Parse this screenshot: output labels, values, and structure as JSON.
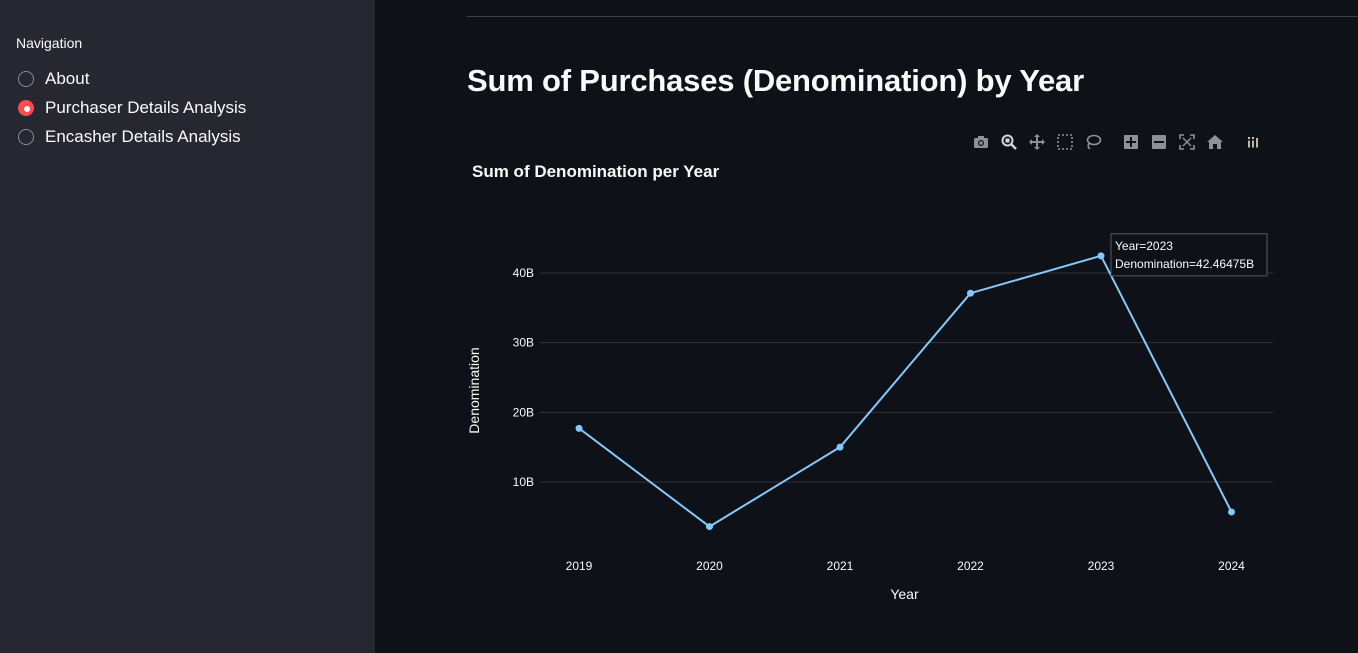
{
  "sidebar": {
    "nav_title": "Navigation",
    "options": [
      {
        "label": "About",
        "checked": false
      },
      {
        "label": "Purchaser Details Analysis",
        "checked": true
      },
      {
        "label": "Encasher Details Analysis",
        "checked": false
      }
    ],
    "accent_color": "#ff4b4b"
  },
  "main": {
    "title": "Sum of Purchases (Denomination) by Year"
  },
  "modebar": {
    "icons": [
      "camera-icon",
      "zoom-icon",
      "pan-icon",
      "box-select-icon",
      "lasso-icon",
      "zoom-in-icon",
      "zoom-out-icon",
      "autoscale-icon",
      "reset-axes-icon",
      "plotly-logo-icon"
    ]
  },
  "chart_data": {
    "type": "line",
    "title": "Sum of Denomination per Year",
    "xlabel": "Year",
    "ylabel": "Denomination",
    "x": [
      "2019",
      "2020",
      "2021",
      "2022",
      "2023",
      "2024"
    ],
    "values": [
      17.7,
      3.6,
      15.0,
      37.1,
      42.46475,
      5.7
    ],
    "ylim": [
      0,
      48
    ],
    "yticks": [
      10,
      20,
      30,
      40
    ],
    "ytick_labels": [
      "10B",
      "20B",
      "30B",
      "40B"
    ],
    "line_color": "#83c9ff",
    "grid": true,
    "tooltip": {
      "line1": "Year=2023",
      "line2": "Denomination=42.46475B"
    }
  }
}
